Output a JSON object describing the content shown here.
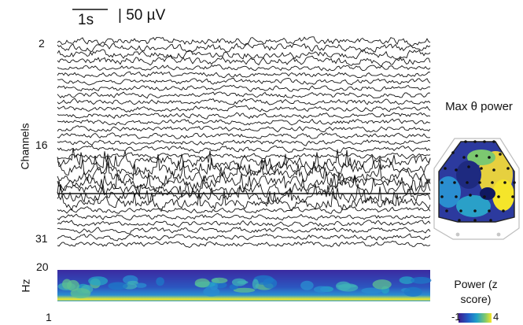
{
  "scale_bar": {
    "time": "1s",
    "voltage": "| 50 µV"
  },
  "channels_axis": {
    "label": "Channels",
    "ticks": [
      "2",
      "16",
      "31"
    ]
  },
  "spectrogram": {
    "label": "Hz",
    "ticks": [
      "20",
      "1"
    ]
  },
  "topomap": {
    "title": "Max θ power"
  },
  "colorbar": {
    "title": "Power (z score)",
    "min": "-1",
    "max": "4"
  },
  "colors": {
    "trace": "#111111",
    "cmap_low": "#3d1c8c",
    "cmap_mid": "#1fa0c8",
    "cmap_high": "#f5e52a"
  },
  "chart_data": [
    {
      "type": "line",
      "title": "",
      "ylabel": "Channels",
      "y_ticks": [
        "2",
        "16",
        "31"
      ],
      "series_count": 31,
      "units": {
        "time_scale": "1s",
        "amplitude_scale": "50 µV"
      }
    },
    {
      "type": "heatmap",
      "ylabel": "Hz",
      "ylim": [
        1,
        20
      ],
      "colorbar": {
        "label": "Power (z score)",
        "range": [
          -1,
          4
        ]
      }
    }
  ]
}
